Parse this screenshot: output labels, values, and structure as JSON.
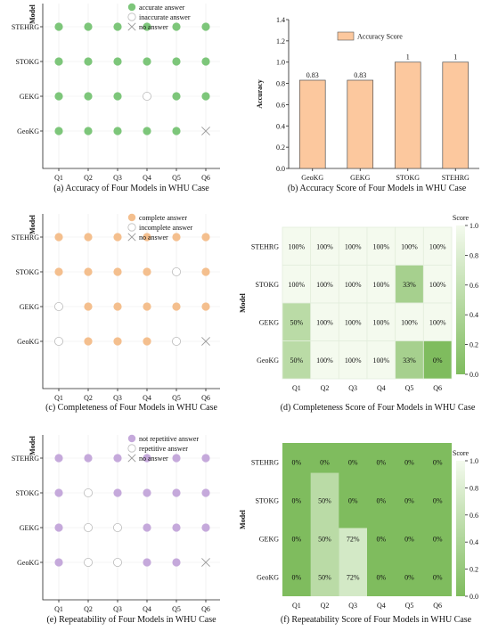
{
  "colors": {
    "accurate": "#7dc67a",
    "complete": "#f4bf8e",
    "repetitive": "#c5a9db",
    "bar": "#fcc89e",
    "heat_low": "#f4faee",
    "heat_high": "#7fbc5e"
  },
  "chart_data": [
    {
      "id": "a",
      "type": "scatter",
      "caption": "(a) Accuracy of Four Models in WHU Case",
      "ylabel": "Model",
      "x": [
        "Q1",
        "Q2",
        "Q3",
        "Q4",
        "Q5",
        "Q6"
      ],
      "y": [
        "STEHRG",
        "STOKG",
        "GEKG",
        "GeoKG"
      ],
      "legend": [
        {
          "key": "filled",
          "label": "accurate answer"
        },
        {
          "key": "open",
          "label": "inaccurate answer"
        },
        {
          "key": "none",
          "label": "no answer"
        }
      ],
      "values": [
        [
          "filled",
          "filled",
          "filled",
          "filled",
          "filled",
          "filled"
        ],
        [
          "filled",
          "filled",
          "filled",
          "filled",
          "filled",
          "filled"
        ],
        [
          "filled",
          "filled",
          "filled",
          "open",
          "filled",
          "filled"
        ],
        [
          "filled",
          "filled",
          "filled",
          "filled",
          "filled",
          "none"
        ]
      ]
    },
    {
      "id": "b",
      "type": "bar",
      "caption": "(b) Accuracy Score of Four Models in WHU Case",
      "ylabel": "Accuracy",
      "categories": [
        "GeoKG",
        "GEKG",
        "STOKG",
        "STEHRG"
      ],
      "values": [
        0.83,
        0.83,
        1,
        1
      ],
      "value_labels": [
        "0.83",
        "0.83",
        "1",
        "1"
      ],
      "legend": "Accuracy Score",
      "ylim": [
        0,
        1.4
      ],
      "yticks": [
        "0.0",
        "0.2",
        "0.4",
        "0.6",
        "0.8",
        "1.0",
        "1.2",
        "1.4"
      ]
    },
    {
      "id": "c",
      "type": "scatter",
      "caption": "(c) Completeness of Four Models in WHU Case",
      "ylabel": "Model",
      "x": [
        "Q1",
        "Q2",
        "Q3",
        "Q4",
        "Q5",
        "Q6"
      ],
      "y": [
        "STEHRG",
        "STOKG",
        "GEKG",
        "GeoKG"
      ],
      "legend": [
        {
          "key": "filled",
          "label": "complete answer"
        },
        {
          "key": "open",
          "label": "incomplete answer"
        },
        {
          "key": "none",
          "label": "no answer"
        }
      ],
      "values": [
        [
          "filled",
          "filled",
          "filled",
          "filled",
          "filled",
          "filled"
        ],
        [
          "filled",
          "filled",
          "filled",
          "filled",
          "open",
          "filled"
        ],
        [
          "open",
          "filled",
          "filled",
          "filled",
          "filled",
          "filled"
        ],
        [
          "open",
          "filled",
          "filled",
          "filled",
          "open",
          "none"
        ]
      ]
    },
    {
      "id": "d",
      "type": "heatmap",
      "caption": "(d) Completeness Score of Four Models in WHU Case",
      "ylabel": "Model",
      "colorbar_title": "Score",
      "colorbar_ticks": [
        "0.0",
        "0.2",
        "0.4",
        "0.6",
        "0.8",
        "1.0"
      ],
      "x": [
        "Q1",
        "Q2",
        "Q3",
        "Q4",
        "Q5",
        "Q6"
      ],
      "y": [
        "STEHRG",
        "STOKG",
        "GEKG",
        "GeoKG"
      ],
      "values": [
        [
          1,
          1,
          1,
          1,
          1,
          1
        ],
        [
          1,
          1,
          1,
          1,
          0.33,
          1
        ],
        [
          0.5,
          1,
          1,
          1,
          1,
          1
        ],
        [
          0.5,
          1,
          1,
          1,
          0.33,
          0
        ]
      ],
      "labels": [
        [
          "100%",
          "100%",
          "100%",
          "100%",
          "100%",
          "100%"
        ],
        [
          "100%",
          "100%",
          "100%",
          "100%",
          "33%",
          "100%"
        ],
        [
          "50%",
          "100%",
          "100%",
          "100%",
          "100%",
          "100%"
        ],
        [
          "50%",
          "100%",
          "100%",
          "100%",
          "33%",
          "0%"
        ]
      ]
    },
    {
      "id": "e",
      "type": "scatter",
      "caption": "(e) Repeatability of Four Models in WHU Case",
      "ylabel": "Model",
      "x": [
        "Q1",
        "Q2",
        "Q3",
        "Q4",
        "Q5",
        "Q6"
      ],
      "y": [
        "STEHRG",
        "STOKG",
        "GEKG",
        "GeoKG"
      ],
      "legend": [
        {
          "key": "filled",
          "label": "not repetitive answer"
        },
        {
          "key": "open",
          "label": "repetitive answer"
        },
        {
          "key": "none",
          "label": "no answer"
        }
      ],
      "values": [
        [
          "filled",
          "filled",
          "filled",
          "filled",
          "filled",
          "filled"
        ],
        [
          "filled",
          "open",
          "filled",
          "filled",
          "filled",
          "filled"
        ],
        [
          "filled",
          "open",
          "open",
          "filled",
          "filled",
          "filled"
        ],
        [
          "filled",
          "open",
          "open",
          "filled",
          "filled",
          "none"
        ]
      ]
    },
    {
      "id": "f",
      "type": "heatmap",
      "caption": "(f) Repeatability Score of Four Models in WHU Case",
      "ylabel": "Model",
      "colorbar_title": "Score",
      "colorbar_ticks": [
        "0.0",
        "0.2",
        "0.4",
        "0.6",
        "0.8",
        "1.0"
      ],
      "x": [
        "Q1",
        "Q2",
        "Q3",
        "Q4",
        "Q5",
        "Q6"
      ],
      "y": [
        "STEHRG",
        "STOKG",
        "GEKG",
        "GeoKG"
      ],
      "values": [
        [
          0,
          0,
          0,
          0,
          0,
          0
        ],
        [
          0,
          0.5,
          0,
          0,
          0,
          0
        ],
        [
          0,
          0.5,
          0.72,
          0,
          0,
          0
        ],
        [
          0,
          0.5,
          0.72,
          0,
          0,
          0
        ]
      ],
      "labels": [
        [
          "0%",
          "0%",
          "0%",
          "0%",
          "0%",
          "0%"
        ],
        [
          "0%",
          "50%",
          "0%",
          "0%",
          "0%",
          "0%"
        ],
        [
          "0%",
          "50%",
          "72%",
          "0%",
          "0%",
          "0%"
        ],
        [
          "0%",
          "50%",
          "72%",
          "0%",
          "0%",
          "0%"
        ]
      ]
    }
  ]
}
